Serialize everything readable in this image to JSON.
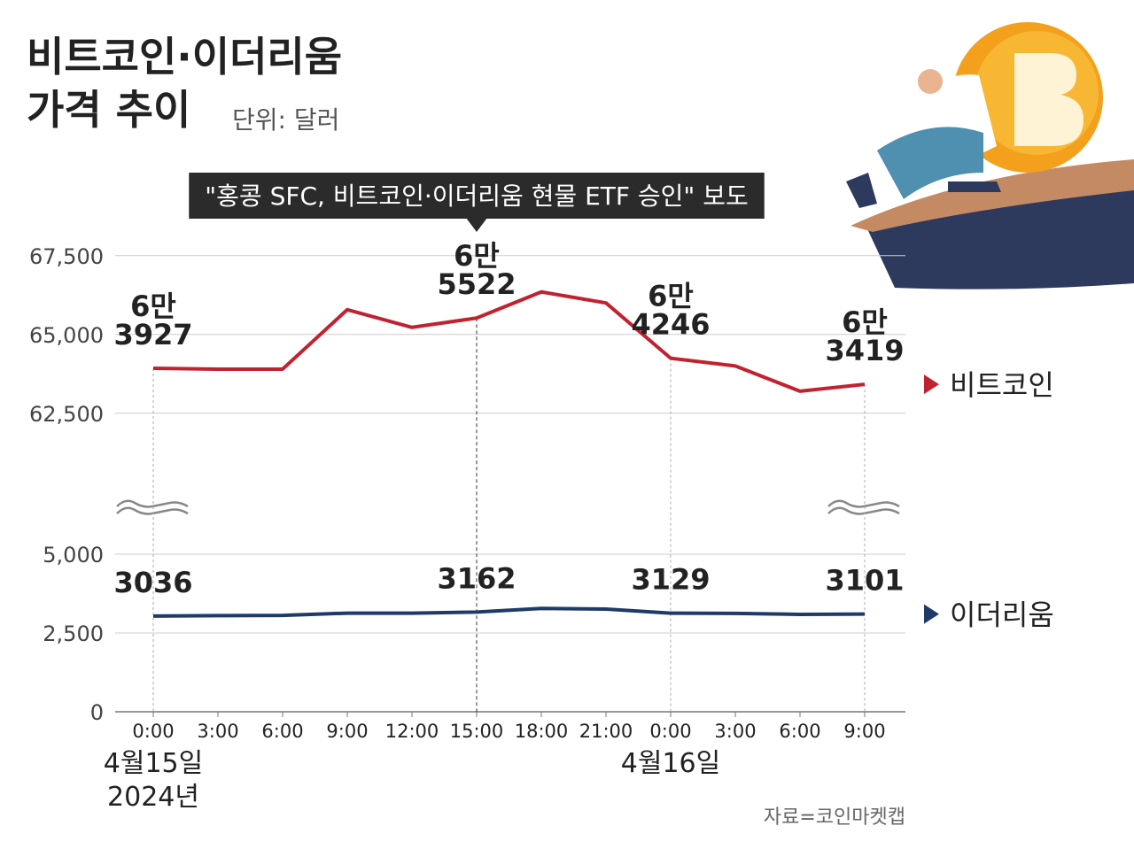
{
  "chart_data": {
    "type": "line",
    "title": [
      "비트코인·이더리움",
      "가격 추이"
    ],
    "subtitle": "단위: 달러",
    "source": "자료=코인마켓캡",
    "annotation": {
      "text": "\"홍콩 SFC, 비트코인·이더리움 현물 ETF 승인\" 보도",
      "category": "15:00"
    },
    "categories": [
      "0:00",
      "3:00",
      "6:00",
      "9:00",
      "12:00",
      "15:00",
      "18:00",
      "21:00",
      "0:00",
      "3:00",
      "6:00",
      "9:00"
    ],
    "date_labels": [
      [
        "4월15일",
        "2024년"
      ],
      null,
      null,
      null,
      null,
      null,
      null,
      null,
      [
        "4월16일"
      ],
      null,
      null,
      null
    ],
    "series": [
      {
        "name": "비트코인",
        "color": "#c0232f",
        "axis": "y2",
        "values": [
          63927,
          63900,
          63900,
          65787,
          65225,
          65522,
          66350,
          66000,
          64246,
          64000,
          63200,
          63419
        ],
        "value_labels": [
          "6만 3927",
          null,
          null,
          null,
          null,
          "6만 5522",
          null,
          null,
          "6만 4246",
          null,
          null,
          "6만 3419"
        ]
      },
      {
        "name": "이더리움",
        "color": "#1f3a68",
        "values": [
          3036,
          3050,
          3060,
          3130,
          3130,
          3162,
          3280,
          3260,
          3129,
          3120,
          3090,
          3101
        ],
        "value_labels": [
          "3036",
          null,
          null,
          null,
          null,
          "3162",
          null,
          null,
          "3129",
          null,
          null,
          "3101"
        ]
      }
    ],
    "ylim": [
      0,
      5600
    ],
    "yticks": [
      0,
      {
        "value": 2500,
        "label": "2,500"
      },
      {
        "value": 5000,
        "label": "5,000"
      }
    ],
    "y2lim": [
      60500,
      68000
    ],
    "y2ticks": [
      {
        "value": 62500,
        "label": "62,500"
      },
      {
        "value": 65000,
        "label": "65,000"
      },
      {
        "value": 67500,
        "label": "67,500"
      }
    ],
    "grid": true
  }
}
